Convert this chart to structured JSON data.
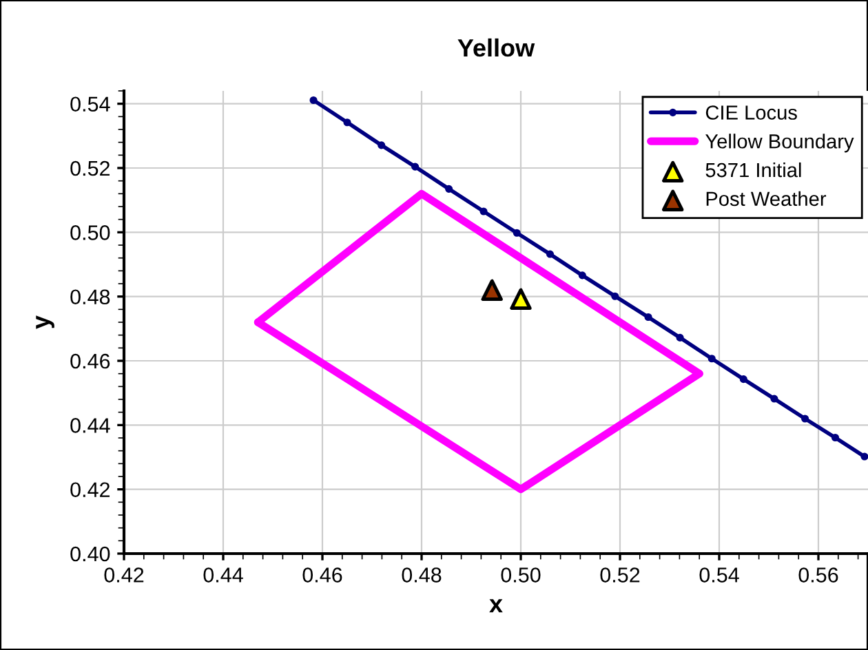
{
  "chart_data": {
    "type": "line",
    "title": "Yellow",
    "xlabel": "x",
    "ylabel": "y",
    "xlim": [
      0.42,
      0.57
    ],
    "ylim": [
      0.4,
      0.544
    ],
    "xticks": [
      {
        "value": 0.42,
        "label": "0.42"
      },
      {
        "value": 0.44,
        "label": "0.44"
      },
      {
        "value": 0.46,
        "label": "0.46"
      },
      {
        "value": 0.48,
        "label": "0.48"
      },
      {
        "value": 0.5,
        "label": "0.50"
      },
      {
        "value": 0.52,
        "label": "0.52"
      },
      {
        "value": 0.54,
        "label": "0.54"
      },
      {
        "value": 0.56,
        "label": "0.56"
      }
    ],
    "yticks": [
      {
        "value": 0.4,
        "label": "0.40"
      },
      {
        "value": 0.42,
        "label": "0.42"
      },
      {
        "value": 0.44,
        "label": "0.44"
      },
      {
        "value": 0.46,
        "label": "0.46"
      },
      {
        "value": 0.48,
        "label": "0.48"
      },
      {
        "value": 0.5,
        "label": "0.50"
      },
      {
        "value": 0.52,
        "label": "0.52"
      },
      {
        "value": 0.54,
        "label": "0.54"
      }
    ],
    "grid": true,
    "legend": "top right",
    "series": [
      {
        "name": "CIE Locus",
        "color": "#000080",
        "marker": "circle",
        "x": [
          0.4582,
          0.465,
          0.4719,
          0.4787,
          0.4855,
          0.4925,
          0.4992,
          0.5059,
          0.5124,
          0.519,
          0.5257,
          0.5321,
          0.5385,
          0.5449,
          0.5511,
          0.5573,
          0.5634,
          0.5693
        ],
        "values": [
          0.5411,
          0.5342,
          0.5271,
          0.5204,
          0.5135,
          0.5065,
          0.4998,
          0.4932,
          0.4866,
          0.4801,
          0.4736,
          0.4672,
          0.4607,
          0.4543,
          0.4482,
          0.442,
          0.4361,
          0.4302
        ]
      },
      {
        "name": "Yellow Boundary",
        "color": "#ff00ff",
        "marker": "none",
        "x": [
          0.447,
          0.48,
          0.536
        ],
        "values": [
          0.472,
          0.512,
          0.456
        ]
      },
      {
        "color": "#ff00ff",
        "marker": "none",
        "x": [
          0.447,
          0.5,
          0.536
        ],
        "values": [
          0.472,
          0.42,
          0.456
        ]
      },
      {
        "name": "5371 Initial",
        "type": "scatter",
        "color": "#ffff00",
        "marker": "triangle",
        "x": [
          0.5
        ],
        "values": [
          0.4792
        ]
      },
      {
        "name": "Post Weather",
        "type": "scatter",
        "color": "#993300",
        "marker": "triangle",
        "x": [
          0.4942
        ],
        "values": [
          0.482
        ]
      }
    ]
  }
}
